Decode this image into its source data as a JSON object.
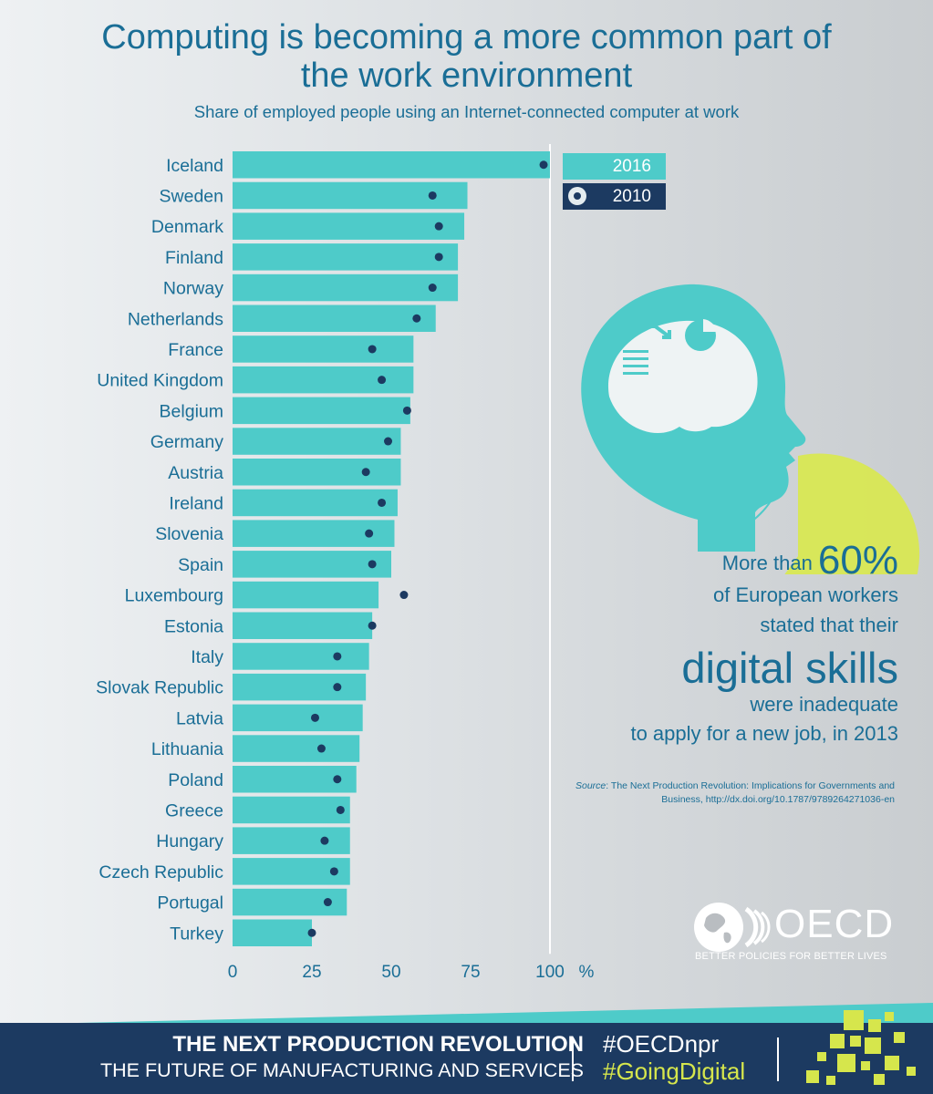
{
  "title_line1": "Computing is becoming a more common part of",
  "title_line2": "the work environment",
  "subtitle": "Share of employed people using an Internet-connected computer at work",
  "colors": {
    "bar_2016": "#4ecbc9",
    "dot_2010": "#1c3a61",
    "text": "#1a6e96",
    "accent_yellow": "#d6e64c"
  },
  "chart_data": {
    "type": "bar",
    "orientation": "horizontal",
    "title": "Share of employed people using an Internet-connected computer at work",
    "categories": [
      "Iceland",
      "Sweden",
      "Denmark",
      "Finland",
      "Norway",
      "Netherlands",
      "France",
      "United Kingdom",
      "Belgium",
      "Germany",
      "Austria",
      "Ireland",
      "Slovenia",
      "Spain",
      "Luxembourg",
      "Estonia",
      "Italy",
      "Slovak Republic",
      "Latvia",
      "Lithuania",
      "Poland",
      "Greece",
      "Hungary",
      "Czech Republic",
      "Portugal",
      "Turkey"
    ],
    "series": [
      {
        "name": "2016",
        "style": "bar",
        "values": [
          100,
          74,
          73,
          71,
          71,
          64,
          57,
          57,
          56,
          53,
          53,
          52,
          51,
          50,
          46,
          44,
          43,
          42,
          41,
          40,
          39,
          37,
          37,
          37,
          36,
          25
        ]
      },
      {
        "name": "2010",
        "style": "dot",
        "values": [
          98,
          63,
          65,
          65,
          63,
          58,
          44,
          47,
          55,
          49,
          42,
          47,
          43,
          44,
          54,
          44,
          33,
          33,
          26,
          28,
          33,
          34,
          29,
          32,
          30,
          25
        ]
      }
    ],
    "xlim": [
      0,
      100
    ],
    "x_ticks": [
      "0",
      "25",
      "50",
      "75",
      "100"
    ],
    "x_unit": "%",
    "legend": [
      "2016",
      "2010"
    ],
    "legend_position": "top-right"
  },
  "callout": {
    "line1_prefix": "More than ",
    "line1_value": "60%",
    "line2": "of European workers",
    "line3": "stated that their",
    "line4": "digital skills",
    "line5": "were inadequate",
    "line6": "to apply for a new job, in 2013"
  },
  "source": {
    "label": "Source",
    "text": ": The Next Production Revolution: Implications for Governments and Business, http://dx.doi.org/10.1787/9789264271036-en"
  },
  "logo": {
    "name": "OECD",
    "tagline": "BETTER POLICIES FOR BETTER LIVES"
  },
  "footer": {
    "title": "THE NEXT PRODUCTION REVOLUTION",
    "subtitle": "THE FUTURE OF MANUFACTURING AND SERVICES",
    "hashtag1": "#OECDnpr",
    "hashtag2": "#GoingDigital"
  }
}
